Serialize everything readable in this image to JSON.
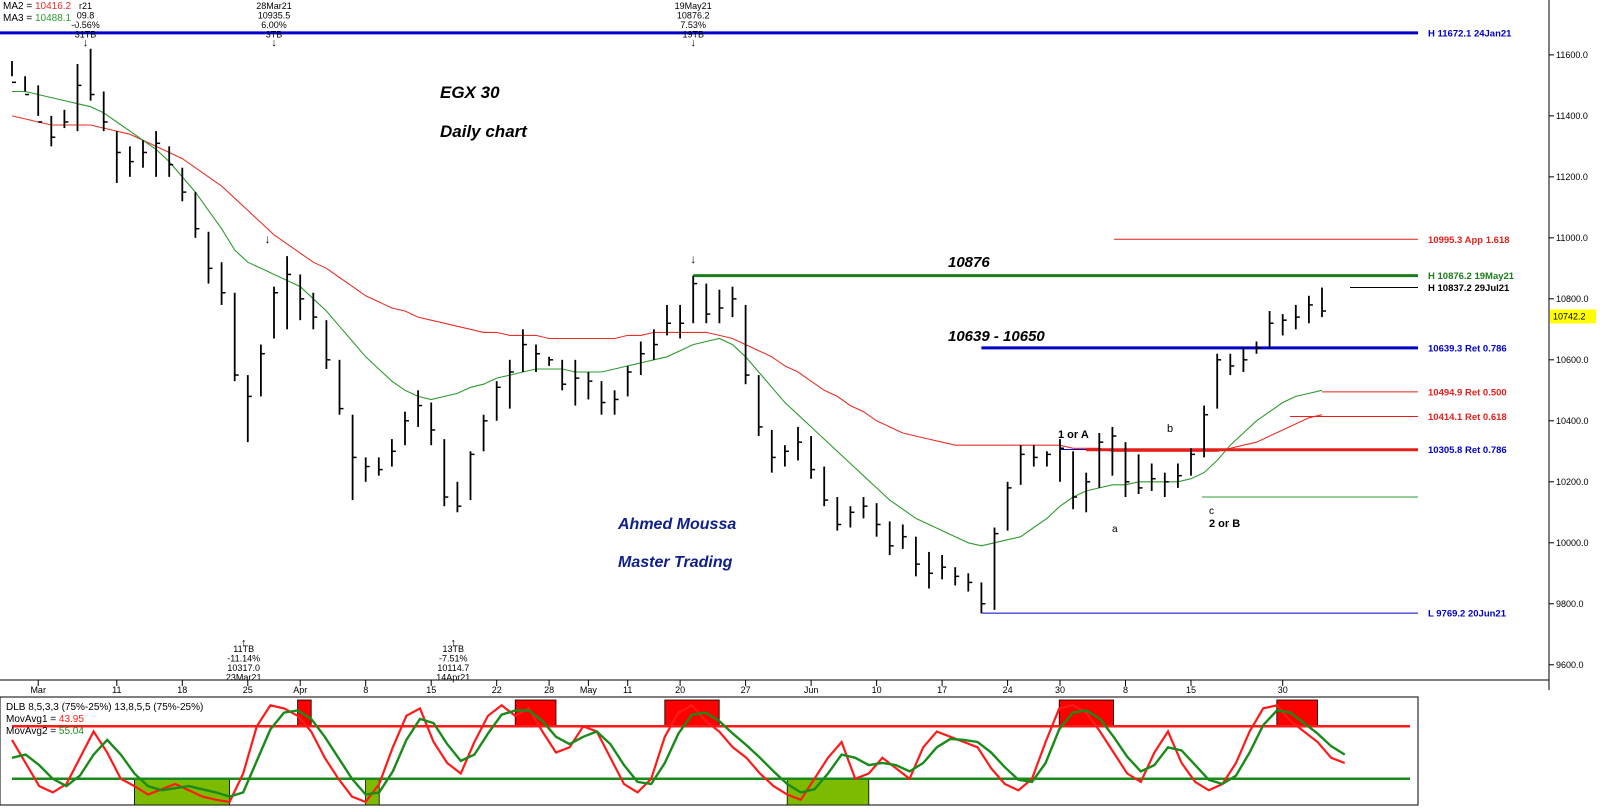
{
  "chart_data": {
    "type": "bar",
    "title": "EGX 30",
    "subtitle": "Daily chart",
    "author": "Ahmed Moussa",
    "brand": "Master Trading",
    "colors": {
      "price": "#000000",
      "ma2": "#e8302a",
      "ma3": "#2e9a2e",
      "blue": "#0000c8",
      "navy": "#1a237e",
      "green": "#1b7d1b",
      "red": "#e3201b",
      "osc_red": "#ff1a1a",
      "osc_green": "#1a8a1a",
      "fill_green": "#7cbb00",
      "fill_red": "#ff0000"
    },
    "legend": {
      "ma2_label": "MA2 = ",
      "ma2_value": "10416.2",
      "ma3_label": "MA3 = ",
      "ma3_value": "10488.1"
    },
    "ylim": [
      9550,
      11780
    ],
    "y_ticks": [
      "11600.0",
      "11400.0",
      "11200.0",
      "11000.0",
      "10800.0",
      "10600.0",
      "10400.0",
      "10200.0",
      "10000.0",
      "9800.0",
      "9600.0"
    ],
    "last_price": "10742.2",
    "x_tick_labels": [
      {
        "i": 2,
        "label": "Mar"
      },
      {
        "i": 8,
        "label": "11"
      },
      {
        "i": 13,
        "label": "18"
      },
      {
        "i": 18,
        "label": "25"
      },
      {
        "i": 22,
        "label": "Apr"
      },
      {
        "i": 27,
        "label": "8"
      },
      {
        "i": 32,
        "label": "15"
      },
      {
        "i": 37,
        "label": "22"
      },
      {
        "i": 41,
        "label": "28"
      },
      {
        "i": 44,
        "label": "May"
      },
      {
        "i": 47,
        "label": "11"
      },
      {
        "i": 51,
        "label": "20"
      },
      {
        "i": 56,
        "label": "27"
      },
      {
        "i": 61,
        "label": "Jun"
      },
      {
        "i": 66,
        "label": "10"
      },
      {
        "i": 71,
        "label": "17"
      },
      {
        "i": 76,
        "label": "24"
      },
      {
        "i": 80,
        "label": "30"
      },
      {
        "i": 85,
        "label": "8"
      },
      {
        "i": 90,
        "label": "15"
      },
      {
        "i": 97,
        "label": "30"
      }
    ],
    "ohlc": [
      [
        11580,
        11530,
        11510
      ],
      [
        11530,
        11480,
        11470
      ],
      [
        11500,
        11400,
        11380
      ],
      [
        11400,
        11300,
        11330
      ],
      [
        11420,
        11360,
        11380
      ],
      [
        11570,
        11350,
        11500
      ],
      [
        11620,
        11450,
        11470
      ],
      [
        11480,
        11350,
        11380
      ],
      [
        11350,
        11180,
        11280
      ],
      [
        11300,
        11200,
        11250
      ],
      [
        11320,
        11230,
        11280
      ],
      [
        11350,
        11200,
        11310
      ],
      [
        11300,
        11200,
        11240
      ],
      [
        11230,
        11120,
        11150
      ],
      [
        11150,
        11000,
        11030
      ],
      [
        11020,
        10850,
        10900
      ],
      [
        10920,
        10780,
        10820
      ],
      [
        10820,
        10530,
        10550
      ],
      [
        10550,
        10330,
        10480
      ],
      [
        10650,
        10480,
        10620
      ],
      [
        10840,
        10670,
        10820
      ],
      [
        10940,
        10700,
        10880
      ],
      [
        10880,
        10730,
        10800
      ],
      [
        10820,
        10700,
        10740
      ],
      [
        10730,
        10570,
        10600
      ],
      [
        10600,
        10420,
        10440
      ],
      [
        10420,
        10140,
        10280
      ],
      [
        10280,
        10200,
        10250
      ],
      [
        10280,
        10220,
        10240
      ],
      [
        10340,
        10250,
        10300
      ],
      [
        10430,
        10320,
        10400
      ],
      [
        10500,
        10380,
        10450
      ],
      [
        10460,
        10320,
        10370
      ],
      [
        10340,
        10120,
        10150
      ],
      [
        10200,
        10100,
        10120
      ],
      [
        10300,
        10140,
        10290
      ],
      [
        10420,
        10300,
        10400
      ],
      [
        10530,
        10400,
        10510
      ],
      [
        10600,
        10440,
        10560
      ],
      [
        10700,
        10560,
        10650
      ],
      [
        10650,
        10560,
        10620
      ],
      [
        10610,
        10580,
        10600
      ],
      [
        10600,
        10500,
        10520
      ],
      [
        10600,
        10450,
        10540
      ],
      [
        10560,
        10470,
        10530
      ],
      [
        10530,
        10420,
        10460
      ],
      [
        10500,
        10420,
        10470
      ],
      [
        10580,
        10480,
        10560
      ],
      [
        10660,
        10550,
        10620
      ],
      [
        10700,
        10600,
        10650
      ],
      [
        10780,
        10680,
        10720
      ],
      [
        10780,
        10670,
        10720
      ],
      [
        10876,
        10720,
        10850
      ],
      [
        10850,
        10720,
        10750
      ],
      [
        10830,
        10720,
        10770
      ],
      [
        10840,
        10740,
        10800
      ],
      [
        10780,
        10520,
        10550
      ],
      [
        10550,
        10350,
        10380
      ],
      [
        10370,
        10230,
        10280
      ],
      [
        10320,
        10250,
        10300
      ],
      [
        10380,
        10270,
        10330
      ],
      [
        10350,
        10210,
        10240
      ],
      [
        10250,
        10120,
        10140
      ],
      [
        10150,
        10040,
        10060
      ],
      [
        10120,
        10050,
        10100
      ],
      [
        10150,
        10080,
        10120
      ],
      [
        10130,
        10020,
        10060
      ],
      [
        10070,
        9960,
        9990
      ],
      [
        10060,
        9980,
        10020
      ],
      [
        10020,
        9890,
        9930
      ],
      [
        9970,
        9850,
        9900
      ],
      [
        9960,
        9880,
        9920
      ],
      [
        9920,
        9860,
        9890
      ],
      [
        9900,
        9840,
        9870
      ],
      [
        9870,
        9769,
        9800
      ],
      [
        10050,
        9780,
        10030
      ],
      [
        10200,
        10040,
        10180
      ],
      [
        10320,
        10190,
        10290
      ],
      [
        10320,
        10250,
        10280
      ],
      [
        10300,
        10250,
        10290
      ],
      [
        10340,
        10200,
        10310
      ],
      [
        10300,
        10110,
        10150
      ],
      [
        10230,
        10100,
        10200
      ],
      [
        10360,
        10180,
        10330
      ],
      [
        10380,
        10220,
        10350
      ],
      [
        10330,
        10150,
        10200
      ],
      [
        10290,
        10160,
        10180
      ],
      [
        10260,
        10170,
        10210
      ],
      [
        10230,
        10150,
        10200
      ],
      [
        10260,
        10180,
        10220
      ],
      [
        10310,
        10220,
        10290
      ],
      [
        10450,
        10280,
        10420
      ],
      [
        10620,
        10440,
        10600
      ],
      [
        10620,
        10550,
        10580
      ],
      [
        10640,
        10560,
        10600
      ],
      [
        10660,
        10620,
        10640
      ],
      [
        10760,
        10640,
        10720
      ],
      [
        10750,
        10680,
        10730
      ],
      [
        10780,
        10700,
        10740
      ],
      [
        10810,
        10720,
        10780
      ],
      [
        10837,
        10740,
        10760
      ]
    ],
    "ma2_series": [
      11480,
      11480,
      11470,
      11460,
      11450,
      11440,
      11430,
      11410,
      11380,
      11350,
      11320,
      11290,
      11250,
      11200,
      11150,
      11090,
      11030,
      10960,
      10920,
      10900,
      10880,
      10860,
      10840,
      10800,
      10760,
      10710,
      10660,
      10610,
      10570,
      10530,
      10500,
      10480,
      10470,
      10480,
      10490,
      10510,
      10520,
      10540,
      10550,
      10560,
      10570,
      10570,
      10570,
      10560,
      10560,
      10560,
      10570,
      10580,
      10590,
      10600,
      10610,
      10630,
      10650,
      10660,
      10670,
      10650,
      10610,
      10560,
      10510,
      10460,
      10420,
      10380,
      10340,
      10300,
      10260,
      10220,
      10180,
      10140,
      10110,
      10080,
      10060,
      10040,
      10020,
      10000,
      9990,
      10000,
      10010,
      10020,
      10050,
      10080,
      10120,
      10150,
      10170,
      10180,
      10190,
      10190,
      10200,
      10200,
      10200,
      10200,
      10210,
      10230,
      10270,
      10320,
      10360,
      10400,
      10430,
      10460,
      10480,
      10490,
      10500
    ],
    "ma3_series": [
      11400,
      11390,
      11380,
      11370,
      11370,
      11370,
      11370,
      11360,
      11350,
      11340,
      11320,
      11300,
      11280,
      11260,
      11230,
      11200,
      11170,
      11130,
      11090,
      11050,
      11010,
      10980,
      10950,
      10920,
      10900,
      10870,
      10840,
      10810,
      10790,
      10770,
      10760,
      10740,
      10730,
      10720,
      10710,
      10700,
      10690,
      10690,
      10680,
      10680,
      10680,
      10670,
      10670,
      10670,
      10670,
      10670,
      10670,
      10680,
      10680,
      10690,
      10690,
      10690,
      10690,
      10690,
      10680,
      10670,
      10650,
      10630,
      10610,
      10580,
      10560,
      10530,
      10500,
      10480,
      10450,
      10430,
      10400,
      10380,
      10360,
      10350,
      10340,
      10330,
      10320,
      10320,
      10320,
      10320,
      10320,
      10320,
      10320,
      10320,
      10320,
      10310,
      10310,
      10310,
      10300,
      10300,
      10300,
      10300,
      10300,
      10300,
      10300,
      10300,
      10300,
      10310,
      10320,
      10330,
      10350,
      10370,
      10390,
      10410,
      10420
    ],
    "levels": [
      {
        "label": "H 11672.1 24Jan21",
        "value": 11672.1,
        "color": "#0000c8",
        "line": "top"
      },
      {
        "label": "10995.3 App 1.618",
        "value": 10995.3,
        "color": "#e3201b",
        "from_i": 83
      },
      {
        "label": "H 10876.2 19May21",
        "value": 10876.2,
        "color": "#1b7d1b",
        "from_i": 52
      },
      {
        "label": "H 10837.2 29Jul21",
        "value": 10837.2,
        "color": "#000000",
        "from_i": 100
      },
      {
        "label": "10639.3 Ret 0.786",
        "value": 10639.3,
        "color": "#0000c8",
        "from_i": 74
      },
      {
        "label": "10494.9 Ret 0.500",
        "value": 10494.9,
        "color": "#e3201b",
        "from_i": 98
      },
      {
        "label": "10414.1 Ret 0.618",
        "value": 10414.1,
        "color": "#e3201b",
        "from_i": 96
      },
      {
        "label": "10305.8 Ret 0.786",
        "value": 10305.8,
        "color": "#0000c8",
        "from_i": 80
      },
      {
        "label": "L 9769.2 20Jun21",
        "value": 9769.2,
        "color": "#0000c8",
        "from_i": 74
      }
    ],
    "level_texts": {
      "l10876": "10876",
      "l10639": "10639 - 10650"
    },
    "top_notes": [
      {
        "i": 5,
        "lines": [
          "r21",
          "09.8",
          "-0.56%",
          "31TB"
        ]
      },
      {
        "i": 20,
        "lines": [
          "28Mar21",
          "10935.5",
          "6.00%",
          "3TB"
        ]
      },
      {
        "i": 52,
        "lines": [
          "19May21",
          "10876.2",
          "7.53%",
          "19TB"
        ]
      }
    ],
    "bottom_notes": [
      {
        "i": 17,
        "lines": [
          "11TB",
          "-11.14%",
          "10317.0",
          "23Mar21"
        ]
      },
      {
        "i": 33,
        "lines": [
          "13TB",
          "-7.51%",
          "10114.7",
          "14Apr21"
        ]
      }
    ],
    "wave_labels": {
      "w1": "1 or A",
      "wa": "a",
      "wb": "b",
      "wc": "c",
      "w2": "2 or B"
    },
    "oscillator": {
      "title": "DLB 8,5,3,3 (75%-25%) 13,8,5,5 (75%-25%)",
      "mov1_label": "MovAvg1 = ",
      "mov1_value": "43.95",
      "mov2_label": "MovAvg2 = ",
      "mov2_value": "55.04",
      "upper": 75,
      "lower": 25,
      "mov1": [
        62,
        40,
        18,
        12,
        20,
        45,
        70,
        50,
        25,
        18,
        10,
        15,
        20,
        14,
        8,
        5,
        3,
        30,
        75,
        95,
        92,
        85,
        70,
        45,
        25,
        8,
        3,
        20,
        55,
        85,
        92,
        60,
        40,
        30,
        60,
        85,
        95,
        85,
        92,
        70,
        50,
        55,
        75,
        70,
        45,
        20,
        12,
        25,
        65,
        88,
        95,
        80,
        70,
        55,
        45,
        30,
        18,
        10,
        5,
        25,
        45,
        60,
        25,
        30,
        45,
        35,
        25,
        55,
        70,
        65,
        60,
        55,
        35,
        20,
        14,
        25,
        60,
        92,
        95,
        88,
        70,
        50,
        30,
        22,
        50,
        70,
        40,
        22,
        14,
        20,
        40,
        70,
        92,
        95,
        80,
        70,
        60,
        45,
        40
      ],
      "mov2": [
        45,
        48,
        38,
        25,
        18,
        28,
        48,
        62,
        48,
        30,
        18,
        14,
        16,
        18,
        15,
        12,
        8,
        12,
        42,
        72,
        88,
        90,
        82,
        65,
        45,
        25,
        10,
        12,
        32,
        62,
        82,
        78,
        58,
        42,
        48,
        68,
        86,
        90,
        90,
        80,
        65,
        58,
        65,
        70,
        58,
        38,
        22,
        20,
        40,
        68,
        86,
        88,
        80,
        68,
        57,
        45,
        32,
        20,
        12,
        15,
        30,
        48,
        45,
        38,
        40,
        38,
        32,
        40,
        55,
        63,
        62,
        60,
        50,
        36,
        24,
        22,
        40,
        72,
        88,
        90,
        82,
        65,
        46,
        32,
        38,
        55,
        52,
        38,
        24,
        20,
        28,
        50,
        76,
        90,
        88,
        78,
        68,
        56,
        48
      ],
      "red_zones": [
        [
          21,
          22
        ],
        [
          37,
          40
        ],
        [
          48,
          52
        ],
        [
          77,
          81
        ],
        [
          93,
          96
        ]
      ],
      "green_zones": [
        [
          9,
          16
        ],
        [
          26,
          27
        ],
        [
          57,
          63
        ]
      ]
    }
  }
}
